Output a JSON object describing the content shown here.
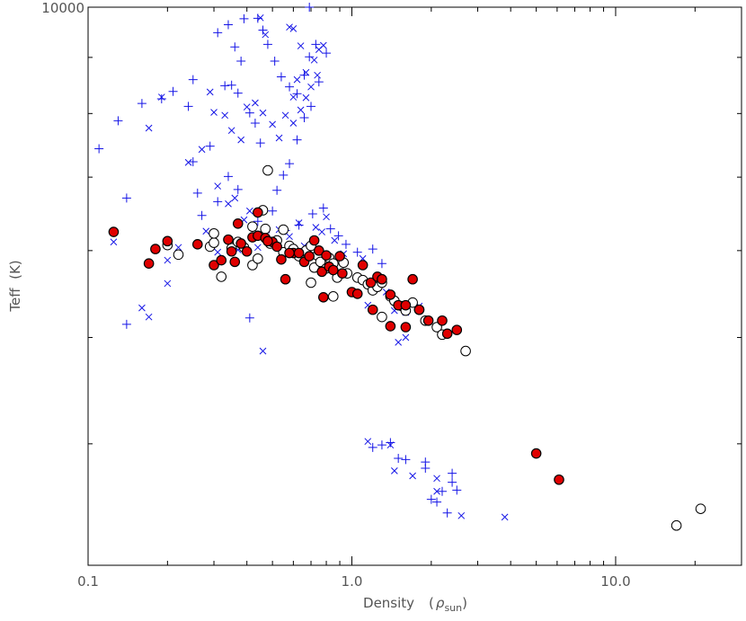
{
  "chart_data": {
    "type": "scatter",
    "title": "",
    "xlabel": "Density",
    "xlabel_symbol": "ρ",
    "xlabel_subscript": "sun",
    "xlabel_open": "(",
    "xlabel_close": ")",
    "ylabel": "Teff  (K)",
    "xscale": "log",
    "yscale": "log",
    "xlim": [
      0.1,
      30
    ],
    "ylim": [
      3100,
      10000
    ],
    "xticks": [
      {
        "value": 0.1,
        "label": "0.1"
      },
      {
        "value": 1.0,
        "label": "1.0"
      },
      {
        "value": 10.0,
        "label": "10.0"
      }
    ],
    "yticks_major": [
      {
        "value": 10000,
        "label": "10000"
      }
    ],
    "yticks_minor": [
      9000,
      8000,
      7000,
      6000,
      5000,
      4000
    ],
    "grid": false,
    "legend": "none",
    "colors": {
      "plus": "#1414e6",
      "cross": "#1414e6",
      "filled_fill": "#e00000",
      "marker_edge": "#000000",
      "axis": "#000000",
      "text": "#555555"
    },
    "series": [
      {
        "marker": "plus",
        "points": [
          [
            0.11,
            7430
          ],
          [
            0.13,
            7880
          ],
          [
            0.16,
            8170
          ],
          [
            0.19,
            8250
          ],
          [
            0.21,
            8380
          ],
          [
            0.25,
            8590
          ],
          [
            0.24,
            8120
          ],
          [
            0.29,
            7470
          ],
          [
            0.25,
            7230
          ],
          [
            0.26,
            6770
          ],
          [
            0.31,
            9480
          ],
          [
            0.34,
            9640
          ],
          [
            0.36,
            9200
          ],
          [
            0.38,
            8930
          ],
          [
            0.35,
            8490
          ],
          [
            0.33,
            8480
          ],
          [
            0.37,
            8350
          ],
          [
            0.41,
            8010
          ],
          [
            0.43,
            7840
          ],
          [
            0.45,
            7520
          ],
          [
            0.39,
            9760
          ],
          [
            0.44,
            9770
          ],
          [
            0.46,
            9530
          ],
          [
            0.48,
            9250
          ],
          [
            0.51,
            8930
          ],
          [
            0.54,
            8640
          ],
          [
            0.58,
            8460
          ],
          [
            0.62,
            8340
          ],
          [
            0.66,
            8670
          ],
          [
            0.69,
            9010
          ],
          [
            0.73,
            9250
          ],
          [
            0.8,
            9080
          ],
          [
            0.75,
            8550
          ],
          [
            0.7,
            8120
          ],
          [
            0.66,
            7930
          ],
          [
            0.62,
            7570
          ],
          [
            0.58,
            7200
          ],
          [
            0.55,
            7030
          ],
          [
            0.52,
            6810
          ],
          [
            0.5,
            6520
          ],
          [
            0.34,
            7010
          ],
          [
            0.37,
            6820
          ],
          [
            0.31,
            6650
          ],
          [
            0.27,
            6460
          ],
          [
            0.44,
            6380
          ],
          [
            0.47,
            6230
          ],
          [
            0.56,
            6260
          ],
          [
            0.63,
            6330
          ],
          [
            0.71,
            6480
          ],
          [
            0.78,
            6560
          ],
          [
            0.83,
            6280
          ],
          [
            0.89,
            6190
          ],
          [
            0.95,
            6080
          ],
          [
            1.05,
            5980
          ],
          [
            1.2,
            6020
          ],
          [
            1.3,
            5840
          ],
          [
            0.14,
            6700
          ],
          [
            0.41,
            5210
          ],
          [
            1.2,
            3970
          ],
          [
            1.3,
            3990
          ],
          [
            1.4,
            4010
          ],
          [
            1.5,
            3880
          ],
          [
            1.6,
            3870
          ],
          [
            1.9,
            3850
          ],
          [
            1.9,
            3800
          ],
          [
            2.4,
            3760
          ],
          [
            2.4,
            3690
          ],
          [
            2.5,
            3630
          ],
          [
            2.2,
            3620
          ],
          [
            2.0,
            3560
          ],
          [
            2.1,
            3540
          ],
          [
            2.3,
            3460
          ],
          [
            0.14,
            5140
          ],
          [
            0.69,
            10000
          ]
        ]
      },
      {
        "marker": "cross",
        "points": [
          [
            0.125,
            6110
          ],
          [
            0.17,
            7760
          ],
          [
            0.19,
            8280
          ],
          [
            0.2,
            5880
          ],
          [
            0.2,
            5600
          ],
          [
            0.17,
            5220
          ],
          [
            0.24,
            7220
          ],
          [
            0.27,
            7420
          ],
          [
            0.29,
            8370
          ],
          [
            0.3,
            8020
          ],
          [
            0.33,
            7970
          ],
          [
            0.35,
            7720
          ],
          [
            0.38,
            7570
          ],
          [
            0.4,
            8110
          ],
          [
            0.43,
            8180
          ],
          [
            0.46,
            8010
          ],
          [
            0.5,
            7820
          ],
          [
            0.53,
            7600
          ],
          [
            0.56,
            7970
          ],
          [
            0.6,
            8280
          ],
          [
            0.62,
            8590
          ],
          [
            0.67,
            8720
          ],
          [
            0.72,
            8950
          ],
          [
            0.75,
            9150
          ],
          [
            0.78,
            9230
          ],
          [
            0.74,
            8670
          ],
          [
            0.7,
            8460
          ],
          [
            0.67,
            8270
          ],
          [
            0.64,
            8060
          ],
          [
            0.6,
            7840
          ],
          [
            0.31,
            6870
          ],
          [
            0.34,
            6620
          ],
          [
            0.36,
            6700
          ],
          [
            0.39,
            6400
          ],
          [
            0.41,
            6520
          ],
          [
            0.42,
            6320
          ],
          [
            0.49,
            6100
          ],
          [
            0.53,
            6270
          ],
          [
            0.58,
            6180
          ],
          [
            0.63,
            6360
          ],
          [
            0.66,
            6060
          ],
          [
            0.69,
            6050
          ],
          [
            0.73,
            6300
          ],
          [
            0.77,
            6240
          ],
          [
            0.8,
            6440
          ],
          [
            0.86,
            6130
          ],
          [
            0.93,
            5960
          ],
          [
            1.1,
            5900
          ],
          [
            1.15,
            5350
          ],
          [
            1.25,
            5550
          ],
          [
            1.35,
            5500
          ],
          [
            1.45,
            5290
          ],
          [
            1.6,
            5270
          ],
          [
            1.8,
            5340
          ],
          [
            0.31,
            5980
          ],
          [
            0.22,
            6040
          ],
          [
            0.16,
            5320
          ],
          [
            0.46,
            4860
          ],
          [
            0.44,
            6040
          ],
          [
            0.37,
            6010
          ],
          [
            0.28,
            6250
          ],
          [
            1.15,
            4020
          ],
          [
            1.4,
            3990
          ],
          [
            1.45,
            3780
          ],
          [
            1.7,
            3740
          ],
          [
            2.1,
            3720
          ],
          [
            2.1,
            3620
          ],
          [
            2.6,
            3440
          ],
          [
            3.8,
            3430
          ],
          [
            1.5,
            4950
          ],
          [
            1.6,
            5000
          ],
          [
            0.45,
            9780
          ],
          [
            0.47,
            9440
          ],
          [
            0.58,
            9590
          ],
          [
            0.6,
            9560
          ],
          [
            0.64,
            9220
          ]
        ]
      },
      {
        "marker": "open",
        "points": [
          [
            0.2,
            6070
          ],
          [
            0.22,
            5950
          ],
          [
            0.29,
            6050
          ],
          [
            0.3,
            6100
          ],
          [
            0.32,
            5680
          ],
          [
            0.35,
            6030
          ],
          [
            0.37,
            6110
          ],
          [
            0.39,
            6040
          ],
          [
            0.42,
            5820
          ],
          [
            0.44,
            5900
          ],
          [
            0.47,
            6280
          ],
          [
            0.49,
            6090
          ],
          [
            0.52,
            6130
          ],
          [
            0.55,
            5980
          ],
          [
            0.58,
            6060
          ],
          [
            0.6,
            6020
          ],
          [
            0.63,
            5930
          ],
          [
            0.67,
            6000
          ],
          [
            0.7,
            6060
          ],
          [
            0.72,
            5790
          ],
          [
            0.74,
            5940
          ],
          [
            0.76,
            5860
          ],
          [
            0.8,
            5780
          ],
          [
            0.82,
            5910
          ],
          [
            0.85,
            5840
          ],
          [
            0.88,
            5670
          ],
          [
            0.93,
            5850
          ],
          [
            0.96,
            5720
          ],
          [
            1.05,
            5670
          ],
          [
            1.1,
            5640
          ],
          [
            1.15,
            5590
          ],
          [
            1.2,
            5520
          ],
          [
            1.25,
            5560
          ],
          [
            1.3,
            5610
          ],
          [
            1.4,
            5450
          ],
          [
            1.45,
            5400
          ],
          [
            1.55,
            5340
          ],
          [
            1.6,
            5290
          ],
          [
            1.7,
            5380
          ],
          [
            1.8,
            5300
          ],
          [
            1.9,
            5180
          ],
          [
            2.1,
            5110
          ],
          [
            2.2,
            5030
          ],
          [
            2.7,
            4860
          ],
          [
            0.48,
            7100
          ],
          [
            0.42,
            6310
          ],
          [
            0.55,
            6270
          ],
          [
            0.3,
            6220
          ],
          [
            0.46,
            6530
          ],
          [
            0.7,
            5610
          ],
          [
            0.85,
            5450
          ],
          [
            1.3,
            5220
          ],
          [
            17.0,
            3370
          ],
          [
            21.0,
            3490
          ]
        ]
      },
      {
        "marker": "filled",
        "points": [
          [
            0.125,
            6240
          ],
          [
            0.17,
            5840
          ],
          [
            0.18,
            6020
          ],
          [
            0.2,
            6120
          ],
          [
            0.26,
            6080
          ],
          [
            0.3,
            5820
          ],
          [
            0.32,
            5880
          ],
          [
            0.34,
            6140
          ],
          [
            0.35,
            5990
          ],
          [
            0.36,
            5860
          ],
          [
            0.37,
            6350
          ],
          [
            0.38,
            6090
          ],
          [
            0.4,
            5990
          ],
          [
            0.42,
            6170
          ],
          [
            0.44,
            6190
          ],
          [
            0.47,
            6160
          ],
          [
            0.5,
            6110
          ],
          [
            0.52,
            6050
          ],
          [
            0.54,
            5890
          ],
          [
            0.56,
            5650
          ],
          [
            0.6,
            5970
          ],
          [
            0.63,
            5970
          ],
          [
            0.66,
            5860
          ],
          [
            0.69,
            5930
          ],
          [
            0.72,
            6130
          ],
          [
            0.75,
            6000
          ],
          [
            0.77,
            5740
          ],
          [
            0.8,
            5940
          ],
          [
            0.82,
            5800
          ],
          [
            0.85,
            5760
          ],
          [
            0.9,
            5930
          ],
          [
            0.92,
            5720
          ],
          [
            1.0,
            5500
          ],
          [
            1.05,
            5480
          ],
          [
            1.1,
            5820
          ],
          [
            1.18,
            5610
          ],
          [
            1.25,
            5680
          ],
          [
            1.3,
            5650
          ],
          [
            1.4,
            5470
          ],
          [
            1.5,
            5350
          ],
          [
            1.6,
            5350
          ],
          [
            1.7,
            5650
          ],
          [
            1.8,
            5300
          ],
          [
            1.95,
            5180
          ],
          [
            2.2,
            5180
          ],
          [
            2.3,
            5040
          ],
          [
            2.5,
            5080
          ],
          [
            0.44,
            6500
          ],
          [
            0.48,
            6120
          ],
          [
            0.58,
            5970
          ],
          [
            0.78,
            5440
          ],
          [
            1.2,
            5300
          ],
          [
            1.4,
            5120
          ],
          [
            1.6,
            5110
          ],
          [
            5.0,
            3920
          ],
          [
            6.1,
            3710
          ]
        ]
      }
    ]
  }
}
